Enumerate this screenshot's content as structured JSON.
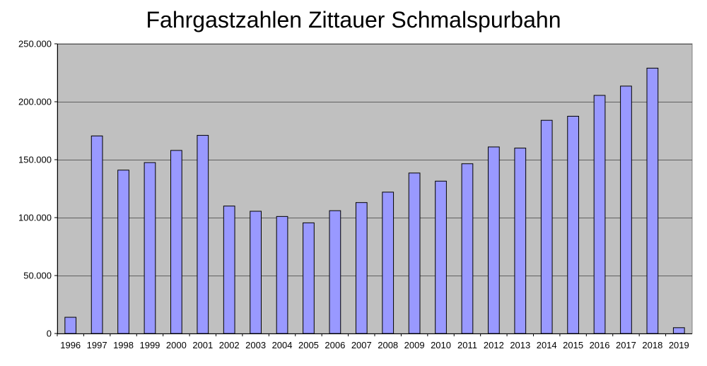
{
  "chart_data": {
    "type": "bar",
    "title": "Fahrgastzahlen Zittauer Schmalspurbahn",
    "xlabel": "",
    "ylabel": "",
    "categories": [
      "1996",
      "1997",
      "1998",
      "1999",
      "2000",
      "2001",
      "2002",
      "2003",
      "2004",
      "2005",
      "2006",
      "2007",
      "2008",
      "2009",
      "2010",
      "2011",
      "2012",
      "2013",
      "2014",
      "2015",
      "2016",
      "2017",
      "2018",
      "2019"
    ],
    "values": [
      14000,
      170500,
      141000,
      147500,
      158000,
      171000,
      110000,
      105500,
      101000,
      95500,
      106000,
      113000,
      122000,
      138500,
      131500,
      146500,
      161000,
      160000,
      184000,
      187500,
      205500,
      213500,
      229000,
      5000
    ],
    "ylim": [
      0,
      250000
    ],
    "y_ticks": [
      0,
      50000,
      100000,
      150000,
      200000,
      250000
    ],
    "y_tick_labels": [
      "0",
      "50.000",
      "100.000",
      "150.000",
      "200.000",
      "250.000"
    ],
    "grid": true,
    "legend": "none",
    "colors": {
      "bar_fill": "#9999ff",
      "bar_stroke": "#000000",
      "plot_background": "#c0c0c0",
      "gridline": "#000000"
    }
  }
}
